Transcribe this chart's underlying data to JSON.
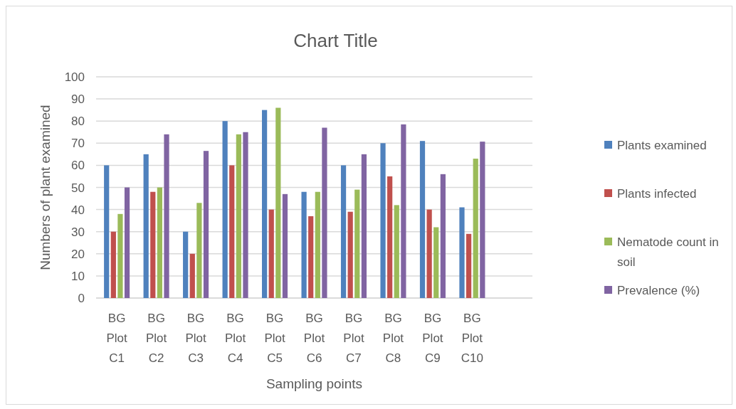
{
  "chart_data": {
    "type": "bar",
    "title": "Chart Title",
    "xlabel": "Sampling points",
    "ylabel": "Numbers of plant examined",
    "categories": [
      "BG Plot C1",
      "BG Plot C2",
      "BG Plot C3",
      "BG Plot C4",
      "BG Plot C5",
      "BG Plot C6",
      "BG Plot C7",
      "BG Plot C8",
      "BG Plot C9",
      "BG Plot C10",
      null
    ],
    "series": [
      {
        "name": "Plants examined",
        "color": "#4f81bd",
        "values": [
          60,
          65,
          30,
          80,
          85,
          48,
          60,
          70,
          71,
          41,
          null
        ]
      },
      {
        "name": "Plants infected",
        "color": "#c0504d",
        "values": [
          30,
          48,
          20,
          60,
          40,
          37,
          39,
          55,
          40,
          29,
          null
        ]
      },
      {
        "name": "Nematode count in soil",
        "color": "#9bbb59",
        "values": [
          38,
          50,
          43,
          74,
          86,
          48,
          49,
          42,
          32,
          63,
          null
        ]
      },
      {
        "name": "Prevalence (%)",
        "color": "#8064a2",
        "values": [
          50,
          74,
          66.5,
          75,
          47,
          77,
          65,
          78.5,
          56,
          70.7,
          null
        ]
      }
    ],
    "ylim": [
      0,
      100
    ],
    "yticks": [
      0,
      10,
      20,
      30,
      40,
      50,
      60,
      70,
      80,
      90,
      100
    ],
    "grid": "y",
    "legend": "right"
  }
}
